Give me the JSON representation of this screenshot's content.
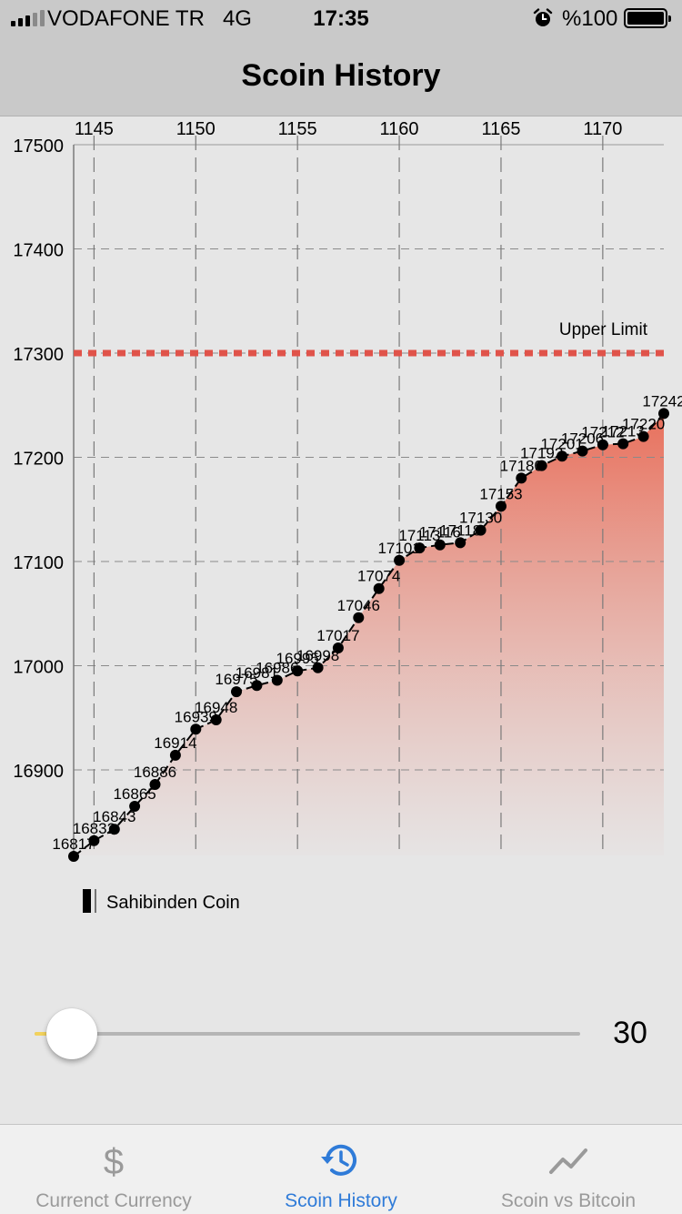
{
  "status_bar": {
    "carrier": "VODAFONE TR",
    "network": "4G",
    "time": "17:35",
    "battery_text": "%100",
    "icons": [
      "signal-bars-icon",
      "alarm-clock-icon",
      "battery-icon"
    ]
  },
  "nav": {
    "title": "Scoin History"
  },
  "chart_data": {
    "type": "line",
    "x": [
      1144,
      1145,
      1146,
      1147,
      1148,
      1149,
      1150,
      1151,
      1152,
      1153,
      1154,
      1155,
      1156,
      1157,
      1158,
      1159,
      1160,
      1161,
      1162,
      1163,
      1164,
      1165,
      1166,
      1167,
      1168,
      1169,
      1170,
      1171,
      1172,
      1173
    ],
    "series": [
      {
        "name": "Sahibinden Coin",
        "values": [
          16817,
          16832,
          16843,
          16865,
          16886,
          16914,
          16939,
          16948,
          16975,
          16981,
          16986,
          16995,
          16998,
          17017,
          17046,
          17074,
          17101,
          17113,
          17116,
          17118,
          17130,
          17153,
          17180,
          17192,
          17201,
          17206,
          17212,
          17213,
          17220,
          17242
        ],
        "point_labels": [
          "16817",
          "16832",
          "16843",
          "16865",
          "16886",
          "16914",
          "16939",
          "16948",
          "16975",
          "16981",
          "16986",
          "16995",
          "16998",
          "17017",
          "17046",
          "17074",
          "17101",
          "17113",
          "17116",
          "17118",
          "17130",
          "17153",
          "17180",
          "17192",
          "17201",
          "17206",
          "17212",
          "17213",
          "17220",
          "17242"
        ]
      }
    ],
    "x_ticks": [
      "1145",
      "1150",
      "1155",
      "1160",
      "1165",
      "1170"
    ],
    "x_tick_values": [
      1145,
      1150,
      1155,
      1160,
      1165,
      1170
    ],
    "y_ticks": [
      "17500",
      "17400",
      "17300",
      "17200",
      "17100",
      "17000",
      "16900"
    ],
    "y_tick_values": [
      17500,
      17400,
      17300,
      17200,
      17100,
      17000,
      16900
    ],
    "xlim": [
      1144,
      1173
    ],
    "ylim": [
      16817,
      17500
    ],
    "x_axis_position": "top",
    "grid": true,
    "limit_line": {
      "label": "Upper Limit",
      "value": 17300,
      "color": "#e0534a"
    },
    "legend": {
      "label": "Sahibinden Coin",
      "placement": "bottom-left"
    },
    "fill_color_top": "#e8705c",
    "fill_color_bottom": "#e6e2e2",
    "xlabel": "",
    "ylabel": ""
  },
  "slider": {
    "value_text": "30",
    "min": 30,
    "max": 365,
    "value": 30,
    "accent": "#f2d25c"
  },
  "tabs": [
    {
      "label": "Currenct Currency",
      "icon": "dollar-sign-icon",
      "active": false
    },
    {
      "label": "Scoin History",
      "icon": "history-clock-icon",
      "active": true
    },
    {
      "label": "Scoin vs Bitcoin",
      "icon": "trend-line-icon",
      "active": false
    }
  ],
  "colors": {
    "accent": "#2f7bd8",
    "inactive": "#9a9a9a",
    "bar_background": "#c9c9c9"
  }
}
